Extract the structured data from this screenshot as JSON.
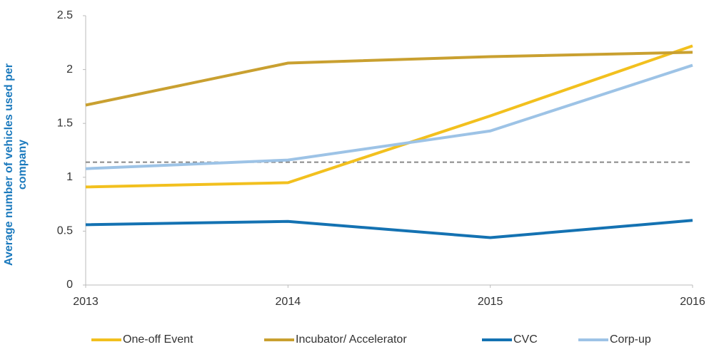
{
  "chart_data": {
    "type": "line",
    "y_label": "Average number of vehicles used per company",
    "x": [
      2013,
      2014,
      2015,
      2016
    ],
    "xlim": [
      2013,
      2016
    ],
    "xticks": [
      2013,
      2014,
      2015,
      2016
    ],
    "ylim": [
      0,
      2.5
    ],
    "yticks": [
      0,
      0.5,
      1,
      1.5,
      2,
      2.5
    ],
    "reference_line": 1.14,
    "legend": "bottom",
    "series": [
      {
        "name": "One-off Event",
        "color": "#f2c01e",
        "values": [
          0.91,
          0.95,
          1.57,
          2.22
        ]
      },
      {
        "name": "Incubator/ Accelerator",
        "color": "#c9a030",
        "values": [
          1.67,
          2.06,
          2.12,
          2.16
        ]
      },
      {
        "name": "CVC",
        "color": "#1472b2",
        "values": [
          0.56,
          0.59,
          0.44,
          0.6
        ]
      },
      {
        "name": "Corp-up",
        "color": "#9dc3e6",
        "values": [
          1.08,
          1.16,
          1.43,
          2.04
        ]
      }
    ]
  }
}
